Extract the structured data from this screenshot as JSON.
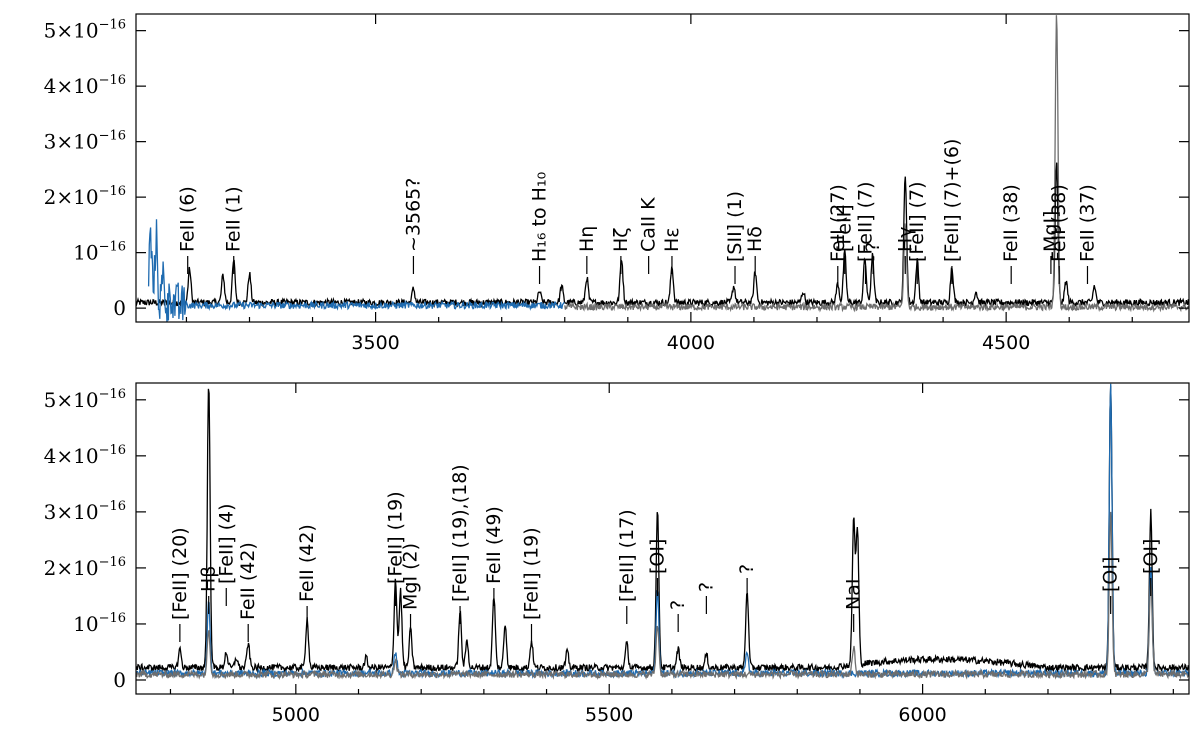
{
  "chart_data": [
    {
      "type": "line",
      "panel": "top",
      "xlabel": "",
      "ylabel": "",
      "xlim": [
        3120,
        4790
      ],
      "ylim": [
        -2.5e-17,
        5.3e-16
      ],
      "xticks": [
        3500,
        4000,
        4500
      ],
      "xtick_labels": [
        "3500",
        "4000",
        "4500"
      ],
      "yticks": [
        0,
        1e-16,
        2e-16,
        3e-16,
        4e-16,
        5e-16
      ],
      "ytick_labels": [
        {
          "mant": "0",
          "exp": ""
        },
        {
          "mant": "10",
          "exp": "−16"
        },
        {
          "mant": "2×10",
          "exp": "−16"
        },
        {
          "mant": "3×10",
          "exp": "−16"
        },
        {
          "mant": "4×10",
          "exp": "−16"
        },
        {
          "mant": "5×10",
          "exp": "−16"
        }
      ],
      "grid": false,
      "series": [
        {
          "color": "#000000",
          "continuum": 1e-17,
          "peaks": [
            [
              3205,
              7e-17
            ],
            [
              3258,
              6e-17
            ],
            [
              3275,
              8.5e-17
            ],
            [
              3300,
              6.2e-17
            ],
            [
              3560,
              3.5e-17
            ],
            [
              3760,
              3e-17
            ],
            [
              3795,
              4e-17
            ],
            [
              3835,
              5.5e-17
            ],
            [
              3890,
              9e-17
            ],
            [
              3970,
              7.5e-17
            ],
            [
              4068,
              4e-17
            ],
            [
              4102,
              6.5e-17
            ],
            [
              4178,
              3e-17
            ],
            [
              4233,
              4.5e-17
            ],
            [
              4244,
              1e-16
            ],
            [
              4276,
              9e-17
            ],
            [
              4288,
              9.5e-17
            ],
            [
              4340,
              2.4e-16
            ],
            [
              4359,
              8.5e-17
            ],
            [
              4414,
              7.5e-17
            ],
            [
              4452,
              3e-17
            ],
            [
              4580,
              2.6e-16
            ],
            [
              4595,
              5e-17
            ],
            [
              4640,
              4e-17
            ]
          ]
        },
        {
          "color": "#1f6bb0",
          "continuum": 5e-18,
          "x_range": [
            3140,
            3800
          ],
          "peaks": [
            [
              3143,
              1.3e-16
            ],
            [
              3152,
              1.25e-16
            ],
            [
              3163,
              5.5e-17
            ],
            [
              3175,
              3e-17
            ]
          ]
        },
        {
          "color": "#6e6e6e",
          "continuum": 2e-18,
          "x_range": [
            3800,
            4790
          ],
          "peaks": [
            [
              4340,
              1.5e-16
            ],
            [
              4580,
              5.3e-16
            ]
          ]
        }
      ],
      "annotations": [
        {
          "text": "FeII (6)",
          "x": 3202
        },
        {
          "text": "FeII (1)",
          "x": 3275
        },
        {
          "text": "~3565?",
          "x": 3560
        },
        {
          "text": "H₁₆ to H₁₀",
          "x": 3760
        },
        {
          "text": "Hη",
          "x": 3835
        },
        {
          "text": "Hζ",
          "x": 3889
        },
        {
          "text": "CaII K",
          "x": 3933
        },
        {
          "text": "Hε",
          "x": 3970
        },
        {
          "text": "[SII] (1)",
          "x": 4070
        },
        {
          "text": "Hδ",
          "x": 4102
        },
        {
          "text": "FeII (27)",
          "x": 4233
        },
        {
          "text": "[FeII]",
          "x": 4244
        },
        {
          "text": "[FeII] (7)",
          "x": 4277
        },
        {
          "text": "?",
          "x": 4289
        },
        {
          "text": "Hγ",
          "x": 4340
        },
        {
          "text": "[FeII] (7)",
          "x": 4359
        },
        {
          "text": "[FeII] (7)+(6)",
          "x": 4414
        },
        {
          "text": "FeII (38)",
          "x": 4508
        },
        {
          "text": "MgI]",
          "x": 4571
        },
        {
          "text": "FeII (38)",
          "x": 4584
        },
        {
          "text": "FeII (37)",
          "x": 4629
        }
      ]
    },
    {
      "type": "line",
      "panel": "bottom",
      "xlabel": "",
      "ylabel": "",
      "xlim": [
        4745,
        6425
      ],
      "ylim": [
        -2.5e-17,
        5.3e-16
      ],
      "xticks": [
        5000,
        5500,
        6000
      ],
      "xtick_labels": [
        "5000",
        "5500",
        "6000"
      ],
      "yticks": [
        0,
        1e-16,
        2e-16,
        3e-16,
        4e-16,
        5e-16
      ],
      "ytick_labels": [
        {
          "mant": "0",
          "exp": ""
        },
        {
          "mant": "10",
          "exp": "−16"
        },
        {
          "mant": "2×10",
          "exp": "−16"
        },
        {
          "mant": "3×10",
          "exp": "−16"
        },
        {
          "mant": "4×10",
          "exp": "−16"
        },
        {
          "mant": "5×10",
          "exp": "−16"
        }
      ],
      "grid": false,
      "series": [
        {
          "color": "#000000",
          "continuum": 2.2e-17,
          "peaks": [
            [
              4815,
              5.5e-17
            ],
            [
              4861,
              5.3e-16
            ],
            [
              4889,
              5e-17
            ],
            [
              4905,
              4e-17
            ],
            [
              4924,
              6.5e-17
            ],
            [
              5018,
              1.1e-16
            ],
            [
              5112,
              4e-17
            ],
            [
              5159,
              1.8e-16
            ],
            [
              5167,
              1.6e-16
            ],
            [
              5183,
              9e-17
            ],
            [
              5262,
              1.2e-16
            ],
            [
              5273,
              7e-17
            ],
            [
              5316,
              1.5e-16
            ],
            [
              5334,
              1e-16
            ],
            [
              5376,
              7e-17
            ],
            [
              5433,
              5e-17
            ],
            [
              5528,
              6.5e-17
            ],
            [
              5577,
              3e-16
            ],
            [
              5610,
              5.5e-17
            ],
            [
              5655,
              4.5e-17
            ],
            [
              5720,
              1.6e-16
            ],
            [
              5890,
              2.8e-16
            ],
            [
              5896,
              2.6e-16
            ],
            [
              6300,
              5.3e-16
            ],
            [
              6364,
              3e-16
            ]
          ]
        },
        {
          "color": "#1f6bb0",
          "continuum": 1.2e-17,
          "peaks": [
            [
              4861,
              1.4e-16
            ],
            [
              5159,
              5e-17
            ],
            [
              5577,
              1.6e-16
            ],
            [
              5720,
              5e-17
            ],
            [
              6300,
              5.3e-16
            ],
            [
              6364,
              2e-16
            ]
          ]
        },
        {
          "color": "#6e6e6e",
          "continuum": 1e-17,
          "peaks": [
            [
              4861,
              9e-17
            ],
            [
              5159,
              3.5e-17
            ],
            [
              5577,
              1e-16
            ],
            [
              5890,
              6e-17
            ],
            [
              6300,
              3e-16
            ],
            [
              6364,
              1.8e-16
            ]
          ]
        }
      ],
      "annotations": [
        {
          "text": "[FeII] (20)",
          "x": 4815
        },
        {
          "text": "Hβ",
          "x": 4861
        },
        {
          "text": "[FeII] (4)",
          "x": 4889
        },
        {
          "text": "FeII (42)",
          "x": 4924
        },
        {
          "text": "FeII (42)",
          "x": 5018
        },
        {
          "text": "[FeII] (19)",
          "x": 5159
        },
        {
          "text": "MgI (2)",
          "x": 5183
        },
        {
          "text": "[FeII] (19),(18)",
          "x": 5262
        },
        {
          "text": "FeII (49)",
          "x": 5316
        },
        {
          "text": "[FeII] (19)",
          "x": 5376
        },
        {
          "text": "[FeII] (17)",
          "x": 5528
        },
        {
          "text": "[OI]",
          "x": 5577
        },
        {
          "text": "?",
          "x": 5610
        },
        {
          "text": "?",
          "x": 5655
        },
        {
          "text": "?",
          "x": 5720
        },
        {
          "text": "NaI",
          "x": 5890
        },
        {
          "text": "[OI]",
          "x": 6300
        },
        {
          "text": "[OI]",
          "x": 6364
        }
      ]
    }
  ]
}
